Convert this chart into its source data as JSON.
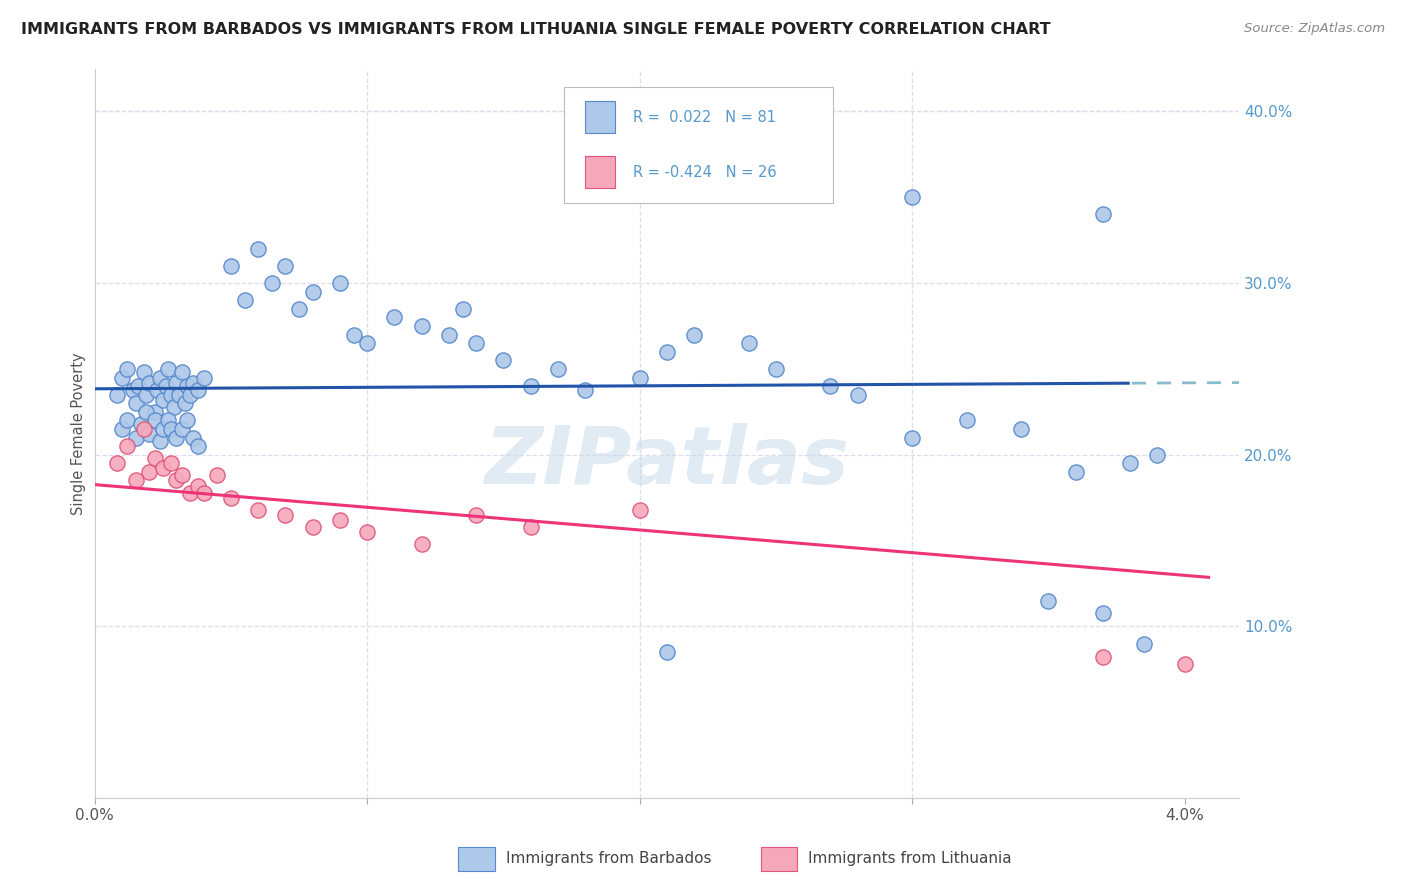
{
  "title": "IMMIGRANTS FROM BARBADOS VS IMMIGRANTS FROM LITHUANIA SINGLE FEMALE POVERTY CORRELATION CHART",
  "source": "Source: ZipAtlas.com",
  "ylabel": "Single Female Poverty",
  "barbados_color": "#adc8e8",
  "lithuania_color": "#f5a8bc",
  "barbados_edge": "#5588cc",
  "lithuania_edge": "#dd5577",
  "line_barbados": "#2255aa",
  "line_lithuania": "#ee3377",
  "line_barbados_dash": "#88bbcc",
  "watermark": "ZIPatlas",
  "barbados_R": 0.022,
  "barbados_N": 81,
  "lithuania_R": -0.424,
  "lithuania_N": 26,
  "xlim": [
    0.0,
    0.042
  ],
  "ylim": [
    0.0,
    0.425
  ],
  "x_ticks": [
    0.0,
    0.01,
    0.02,
    0.03,
    0.04
  ],
  "y_ticks": [
    0.0,
    0.1,
    0.2,
    0.3,
    0.4
  ],
  "right_y_color": "#5599cc",
  "grid_color": "#ddddee",
  "marker_size": 120,
  "barbados_x": [
    0.0008,
    0.001,
    0.0012,
    0.0014,
    0.0015,
    0.0016,
    0.0018,
    0.0019,
    0.002,
    0.0022,
    0.0023,
    0.0024,
    0.0025,
    0.0026,
    0.0027,
    0.0028,
    0.0029,
    0.003,
    0.0031,
    0.0032,
    0.0033,
    0.0034,
    0.0035,
    0.0036,
    0.0038,
    0.004,
    0.001,
    0.0012,
    0.0015,
    0.0017,
    0.0019,
    0.002,
    0.0022,
    0.0024,
    0.0025,
    0.0027,
    0.0028,
    0.003,
    0.0032,
    0.0034,
    0.0036,
    0.0038,
    0.005,
    0.0055,
    0.006,
    0.0065,
    0.007,
    0.0075,
    0.008,
    0.009,
    0.0095,
    0.01,
    0.011,
    0.012,
    0.013,
    0.0135,
    0.014,
    0.015,
    0.016,
    0.017,
    0.018,
    0.02,
    0.021,
    0.022,
    0.024,
    0.025,
    0.027,
    0.028,
    0.03,
    0.032,
    0.034,
    0.036,
    0.038,
    0.039,
    0.025,
    0.03,
    0.035,
    0.037,
    0.037,
    0.0385,
    0.021
  ],
  "barbados_y": [
    0.235,
    0.245,
    0.25,
    0.238,
    0.23,
    0.24,
    0.248,
    0.235,
    0.242,
    0.225,
    0.238,
    0.245,
    0.232,
    0.24,
    0.25,
    0.235,
    0.228,
    0.242,
    0.235,
    0.248,
    0.23,
    0.24,
    0.235,
    0.242,
    0.238,
    0.245,
    0.215,
    0.22,
    0.21,
    0.218,
    0.225,
    0.212,
    0.22,
    0.208,
    0.215,
    0.22,
    0.215,
    0.21,
    0.215,
    0.22,
    0.21,
    0.205,
    0.31,
    0.29,
    0.32,
    0.3,
    0.31,
    0.285,
    0.295,
    0.3,
    0.27,
    0.265,
    0.28,
    0.275,
    0.27,
    0.285,
    0.265,
    0.255,
    0.24,
    0.25,
    0.238,
    0.245,
    0.26,
    0.27,
    0.265,
    0.25,
    0.24,
    0.235,
    0.21,
    0.22,
    0.215,
    0.19,
    0.195,
    0.2,
    0.355,
    0.35,
    0.115,
    0.108,
    0.34,
    0.09,
    0.085
  ],
  "lithuania_x": [
    0.0008,
    0.0012,
    0.0015,
    0.0018,
    0.002,
    0.0022,
    0.0025,
    0.0028,
    0.003,
    0.0032,
    0.0035,
    0.0038,
    0.004,
    0.0045,
    0.005,
    0.006,
    0.007,
    0.008,
    0.009,
    0.01,
    0.012,
    0.014,
    0.016,
    0.02,
    0.037,
    0.04
  ],
  "lithuania_y": [
    0.195,
    0.205,
    0.185,
    0.215,
    0.19,
    0.198,
    0.192,
    0.195,
    0.185,
    0.188,
    0.178,
    0.182,
    0.178,
    0.188,
    0.175,
    0.168,
    0.165,
    0.158,
    0.162,
    0.155,
    0.148,
    0.165,
    0.158,
    0.168,
    0.082,
    0.078
  ]
}
